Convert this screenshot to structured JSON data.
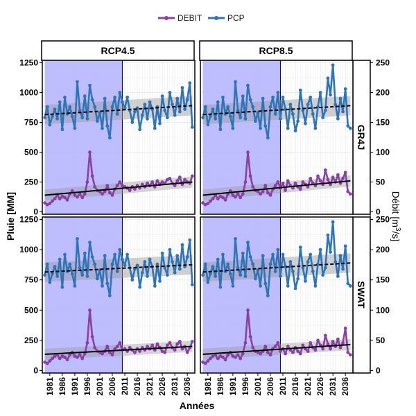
{
  "chart_data": {
    "type": "line",
    "xlabel": "Années",
    "ylabel_left": "Pluie [MM]",
    "ylabel_right": "Débit [m³/s]",
    "ylabel_right_base": "Débit [m",
    "ylabel_right_sup": "3",
    "ylabel_right_end": "/s]",
    "legend": [
      "DEBIT",
      "PCP"
    ],
    "legend_position": "top",
    "grid": true,
    "colors": {
      "DEBIT": "#8a3fa6",
      "PCP": "#2e74b8",
      "reference_band": "#b3b3ff",
      "trend": "#000000"
    },
    "panel_columns": [
      "RCP4.5",
      "RCP8.5"
    ],
    "panel_rows": [
      "GR4J",
      "SWAT"
    ],
    "reference_period": [
      1979,
      2010
    ],
    "x_range": [
      1978,
      2039
    ],
    "x_ticks": [
      1981,
      1986,
      1991,
      1996,
      2001,
      2006,
      2011,
      2016,
      2021,
      2026,
      2031,
      2036
    ],
    "y_left_range": [
      -20,
      1270
    ],
    "y_left_ticks": [
      0,
      250,
      500,
      750,
      1000,
      1250
    ],
    "y_right_ticks": [
      0,
      50,
      100,
      150,
      200,
      250
    ],
    "y_right_scale": 5,
    "panels": [
      {
        "column": "RCP4.5",
        "row": "GR4J",
        "x": [
          1979,
          1980,
          1981,
          1982,
          1983,
          1984,
          1985,
          1986,
          1987,
          1988,
          1989,
          1990,
          1991,
          1992,
          1993,
          1994,
          1995,
          1996,
          1997,
          1998,
          1999,
          2000,
          2001,
          2002,
          2003,
          2004,
          2005,
          2006,
          2007,
          2008,
          2009,
          2010,
          2011,
          2012,
          2013,
          2014,
          2015,
          2016,
          2017,
          2018,
          2019,
          2020,
          2021,
          2022,
          2023,
          2024,
          2025,
          2026,
          2027,
          2028,
          2029,
          2030,
          2031,
          2032,
          2033,
          2034,
          2035,
          2036,
          2037,
          2038
        ],
        "pcp": [
          790,
          880,
          730,
          800,
          860,
          780,
          920,
          690,
          960,
          820,
          880,
          800,
          700,
          1090,
          850,
          790,
          970,
          780,
          1060,
          940,
          880,
          760,
          830,
          700,
          950,
          720,
          620,
          880,
          960,
          820,
          1000,
          920,
          870,
          960,
          850,
          750,
          840,
          870,
          690,
          810,
          900,
          780,
          920,
          860,
          700,
          880,
          740,
          970,
          850,
          790,
          1000,
          900,
          810,
          950,
          840,
          1040,
          860,
          940,
          1080,
          710
        ],
        "pcp_trend": [
          815,
          890
        ],
        "debit": [
          15,
          12,
          14,
          18,
          22,
          28,
          22,
          26,
          24,
          20,
          30,
          35,
          28,
          25,
          30,
          24,
          30,
          50,
          100,
          60,
          42,
          36,
          34,
          30,
          34,
          44,
          32,
          28,
          38,
          44,
          50,
          44,
          42,
          40,
          36,
          42,
          38,
          44,
          40,
          46,
          42,
          48,
          44,
          50,
          42,
          52,
          46,
          50,
          48,
          54,
          56,
          48,
          44,
          52,
          58,
          46,
          54,
          50,
          48,
          60
        ],
        "debit_trend": [
          28,
          50
        ]
      },
      {
        "column": "RCP8.5",
        "row": "GR4J",
        "x": [
          1979,
          1980,
          1981,
          1982,
          1983,
          1984,
          1985,
          1986,
          1987,
          1988,
          1989,
          1990,
          1991,
          1992,
          1993,
          1994,
          1995,
          1996,
          1997,
          1998,
          1999,
          2000,
          2001,
          2002,
          2003,
          2004,
          2005,
          2006,
          2007,
          2008,
          2009,
          2010,
          2011,
          2012,
          2013,
          2014,
          2015,
          2016,
          2017,
          2018,
          2019,
          2020,
          2021,
          2022,
          2023,
          2024,
          2025,
          2026,
          2027,
          2028,
          2029,
          2030,
          2031,
          2032,
          2033,
          2034,
          2035,
          2036,
          2037,
          2038
        ],
        "pcp": [
          790,
          880,
          730,
          800,
          860,
          780,
          920,
          690,
          960,
          820,
          880,
          800,
          700,
          1090,
          850,
          790,
          970,
          780,
          1060,
          940,
          880,
          760,
          830,
          700,
          950,
          720,
          620,
          880,
          960,
          820,
          1000,
          780,
          960,
          860,
          700,
          900,
          820,
          680,
          760,
          1020,
          850,
          740,
          900,
          960,
          820,
          700,
          880,
          1000,
          790,
          850,
          1120,
          980,
          1230,
          900,
          780,
          950,
          840,
          1030,
          720,
          700
        ],
        "pcp_trend": [
          815,
          890
        ],
        "debit": [
          15,
          12,
          14,
          18,
          22,
          28,
          22,
          26,
          24,
          20,
          30,
          35,
          28,
          25,
          30,
          24,
          30,
          50,
          100,
          60,
          42,
          36,
          34,
          30,
          34,
          44,
          32,
          28,
          38,
          44,
          50,
          40,
          48,
          36,
          52,
          44,
          40,
          48,
          42,
          38,
          50,
          46,
          42,
          56,
          48,
          44,
          60,
          52,
          46,
          70,
          54,
          46,
          58,
          50,
          62,
          48,
          56,
          66,
          34,
          30
        ],
        "debit_trend": [
          28,
          52
        ]
      },
      {
        "column": "RCP4.5",
        "row": "SWAT",
        "x": [
          1979,
          1980,
          1981,
          1982,
          1983,
          1984,
          1985,
          1986,
          1987,
          1988,
          1989,
          1990,
          1991,
          1992,
          1993,
          1994,
          1995,
          1996,
          1997,
          1998,
          1999,
          2000,
          2001,
          2002,
          2003,
          2004,
          2005,
          2006,
          2007,
          2008,
          2009,
          2010,
          2011,
          2012,
          2013,
          2014,
          2015,
          2016,
          2017,
          2018,
          2019,
          2020,
          2021,
          2022,
          2023,
          2024,
          2025,
          2026,
          2027,
          2028,
          2029,
          2030,
          2031,
          2032,
          2033,
          2034,
          2035,
          2036,
          2037,
          2038
        ],
        "pcp": [
          790,
          880,
          730,
          800,
          860,
          780,
          920,
          690,
          960,
          820,
          880,
          800,
          700,
          1090,
          850,
          790,
          970,
          780,
          1060,
          940,
          880,
          760,
          830,
          700,
          950,
          720,
          620,
          880,
          960,
          820,
          1000,
          920,
          870,
          960,
          850,
          750,
          840,
          870,
          690,
          810,
          900,
          780,
          920,
          860,
          700,
          880,
          740,
          970,
          850,
          790,
          1000,
          900,
          810,
          950,
          840,
          1040,
          860,
          940,
          1080,
          710
        ],
        "pcp_trend": [
          815,
          875
        ],
        "debit": [
          14,
          12,
          16,
          20,
          24,
          26,
          20,
          24,
          22,
          18,
          26,
          30,
          24,
          22,
          26,
          20,
          28,
          46,
          100,
          56,
          38,
          32,
          30,
          28,
          32,
          40,
          30,
          26,
          36,
          40,
          46,
          34,
          36,
          32,
          38,
          34,
          30,
          36,
          32,
          38,
          34,
          40,
          36,
          42,
          34,
          44,
          38,
          32,
          30,
          42,
          46,
          38,
          34,
          44,
          48,
          36,
          40,
          30,
          38,
          48
        ],
        "debit_trend": [
          27,
          40
        ]
      },
      {
        "column": "RCP8.5",
        "row": "SWAT",
        "x": [
          1979,
          1980,
          1981,
          1982,
          1983,
          1984,
          1985,
          1986,
          1987,
          1988,
          1989,
          1990,
          1991,
          1992,
          1993,
          1994,
          1995,
          1996,
          1997,
          1998,
          1999,
          2000,
          2001,
          2002,
          2003,
          2004,
          2005,
          2006,
          2007,
          2008,
          2009,
          2010,
          2011,
          2012,
          2013,
          2014,
          2015,
          2016,
          2017,
          2018,
          2019,
          2020,
          2021,
          2022,
          2023,
          2024,
          2025,
          2026,
          2027,
          2028,
          2029,
          2030,
          2031,
          2032,
          2033,
          2034,
          2035,
          2036,
          2037,
          2038
        ],
        "pcp": [
          790,
          880,
          730,
          800,
          860,
          780,
          920,
          690,
          960,
          820,
          880,
          800,
          700,
          1090,
          850,
          790,
          970,
          780,
          1060,
          940,
          880,
          760,
          830,
          700,
          950,
          720,
          620,
          880,
          960,
          820,
          1000,
          780,
          960,
          860,
          700,
          900,
          820,
          680,
          760,
          1020,
          850,
          740,
          900,
          960,
          820,
          700,
          880,
          1000,
          790,
          850,
          1120,
          980,
          1230,
          900,
          780,
          950,
          840,
          1030,
          720,
          700
        ],
        "pcp_trend": [
          815,
          890
        ],
        "debit": [
          14,
          12,
          16,
          20,
          24,
          26,
          20,
          24,
          22,
          18,
          26,
          30,
          24,
          22,
          26,
          20,
          28,
          46,
          100,
          56,
          38,
          32,
          30,
          28,
          32,
          40,
          30,
          26,
          36,
          40,
          46,
          32,
          36,
          28,
          40,
          34,
          30,
          38,
          32,
          28,
          42,
          36,
          32,
          46,
          38,
          34,
          50,
          42,
          36,
          58,
          44,
          36,
          48,
          40,
          52,
          38,
          46,
          70,
          30,
          26
        ],
        "debit_trend": [
          27,
          43
        ]
      }
    ]
  }
}
